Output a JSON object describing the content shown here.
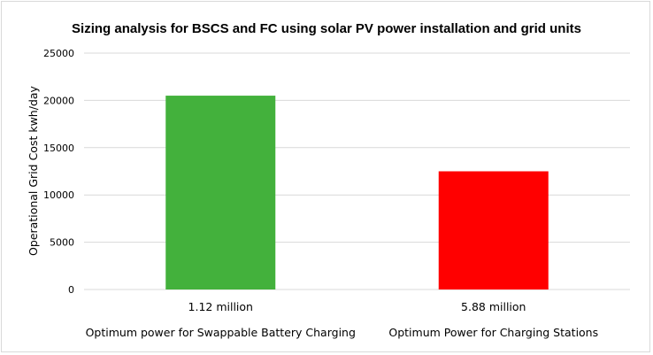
{
  "chart_data": {
    "type": "bar",
    "title": "Sizing analysis for BSCS and FC using solar PV power installation and grid units",
    "xlabel": "",
    "ylabel": "Operational Grid Cost kwh/day",
    "ylim": [
      0,
      25000
    ],
    "yticks": [
      0,
      5000,
      10000,
      15000,
      20000,
      25000
    ],
    "grid": true,
    "legend": "none",
    "categories": [
      "1.12 million",
      "5.88 million"
    ],
    "category_captions": [
      "Optimum power for Swappable Battery Charging",
      "Optimum Power for Charging Stations"
    ],
    "values": [
      20500,
      12500
    ],
    "colors": [
      "#43b13c",
      "#ff0000"
    ]
  }
}
